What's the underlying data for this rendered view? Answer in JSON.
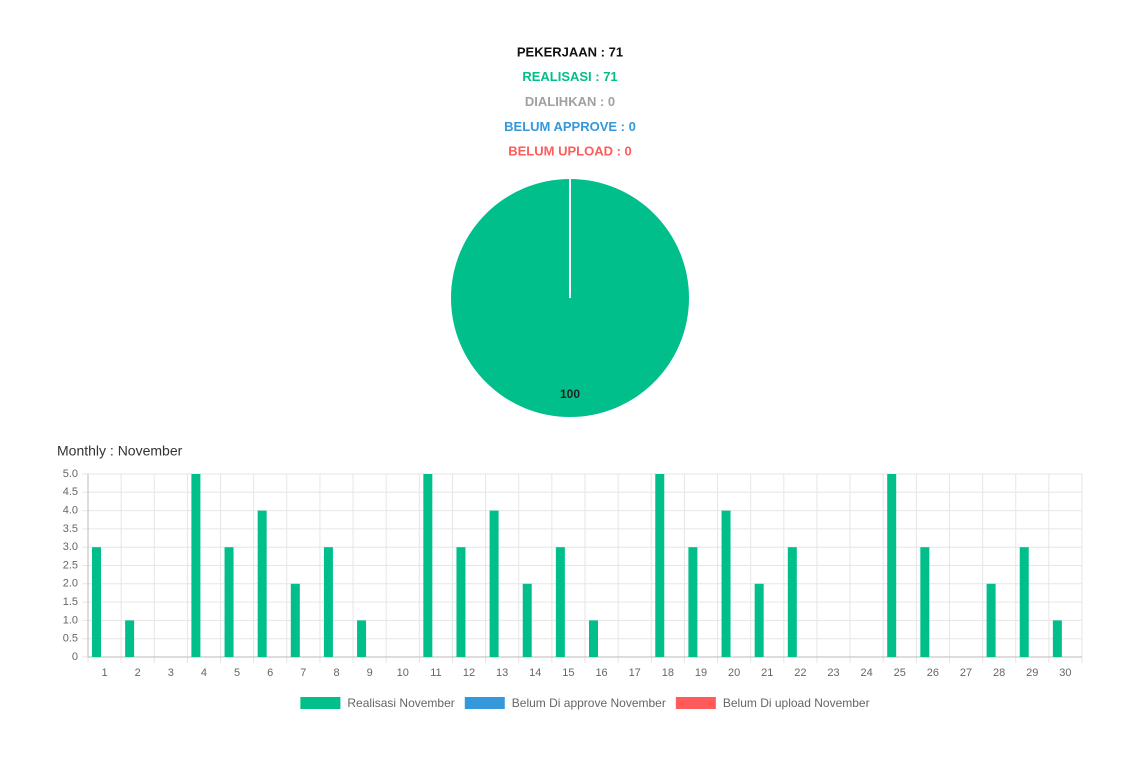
{
  "chart_data": [
    {
      "type": "pie",
      "summary": [
        {
          "text": "PEKERJAAN : 71",
          "color": "#111111"
        },
        {
          "text": "REALISASI : 71",
          "color": "#00bf8a"
        },
        {
          "text": "DIALIHKAN : 0",
          "color": "#a0a0a0"
        },
        {
          "text": "BELUM APPROVE : 0",
          "color": "#3498db"
        },
        {
          "text": "BELUM UPLOAD : 0",
          "color": "#ff5b5b"
        }
      ],
      "values": [
        100
      ],
      "colors": [
        "#00bf8a"
      ]
    },
    {
      "type": "bar",
      "title": "Monthly : November",
      "categories": [
        "1",
        "2",
        "3",
        "4",
        "5",
        "6",
        "7",
        "8",
        "9",
        "10",
        "11",
        "12",
        "13",
        "14",
        "15",
        "16",
        "17",
        "18",
        "19",
        "20",
        "21",
        "22",
        "23",
        "24",
        "25",
        "26",
        "27",
        "28",
        "29",
        "30"
      ],
      "series": [
        {
          "name": "Realisasi November",
          "color": "#00bf8a",
          "values": [
            3,
            1,
            0,
            5,
            3,
            4,
            2,
            3,
            1,
            0,
            5,
            3,
            4,
            2,
            3,
            1,
            0,
            5,
            3,
            4,
            2,
            3,
            0,
            0,
            5,
            3,
            0,
            2,
            3,
            1
          ]
        },
        {
          "name": "Belum Di approve November",
          "color": "#3498db",
          "values": [
            0,
            0,
            0,
            0,
            0,
            0,
            0,
            0,
            0,
            0,
            0,
            0,
            0,
            0,
            0,
            0,
            0,
            0,
            0,
            0,
            0,
            0,
            0,
            0,
            0,
            0,
            0,
            0,
            0,
            0
          ]
        },
        {
          "name": "Belum Di upload November",
          "color": "#ff5b5b",
          "values": [
            0,
            0,
            0,
            0,
            0,
            0,
            0,
            0,
            0,
            0,
            0,
            0,
            0,
            0,
            0,
            0,
            0,
            0,
            0,
            0,
            0,
            0,
            0,
            0,
            0,
            0,
            0,
            0,
            0,
            0
          ]
        }
      ],
      "ylim": [
        0,
        5
      ],
      "yticks": [
        0,
        0.5,
        {
          "value": 1,
          "label": "1.0"
        },
        1.5,
        {
          "value": 2,
          "label": "2.0"
        },
        2.5,
        {
          "value": 3,
          "label": "3.0"
        },
        3.5,
        {
          "value": 4,
          "label": "4.0"
        },
        4.5,
        {
          "value": 5,
          "label": "5.0"
        }
      ],
      "grid": true,
      "legend": "bottom"
    }
  ]
}
